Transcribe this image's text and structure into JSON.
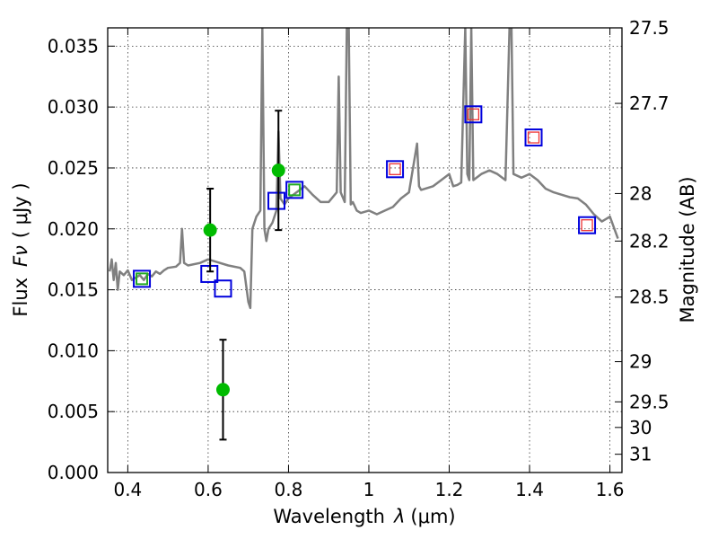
{
  "chart_data": {
    "type": "scatter",
    "xlabel_text": "Wavelength",
    "xlabel_symbol": "λ",
    "xlabel_unit": "(μm)",
    "ylabel_text": "Flux",
    "ylabel_symbol": "Fν",
    "ylabel_unit": "( μJy )",
    "y2label": "Magnitude (AB)",
    "xlim": [
      0.35,
      1.63
    ],
    "ylim": [
      0.0,
      0.0365
    ],
    "grid": true,
    "legend": "none",
    "x_ticks": [
      0.4,
      0.6,
      0.8,
      1.0,
      1.2,
      1.4,
      1.6
    ],
    "x_tick_labels": [
      "0.4",
      "0.6",
      "0.8",
      "1",
      "1.2",
      "1.4",
      "1.6"
    ],
    "y_ticks": [
      0.0,
      0.005,
      0.01,
      0.015,
      0.02,
      0.025,
      0.03,
      0.035
    ],
    "y_tick_labels": [
      "0.000",
      "0.005",
      "0.010",
      "0.015",
      "0.020",
      "0.025",
      "0.030",
      "0.035"
    ],
    "y2_ticks": [
      {
        "label": "27.5",
        "flux": 0.0365
      },
      {
        "label": "27.7",
        "flux": 0.0303
      },
      {
        "label": "28",
        "flux": 0.0229
      },
      {
        "label": "28.2",
        "flux": 0.019
      },
      {
        "label": "28.5",
        "flux": 0.0144
      },
      {
        "label": "29",
        "flux": 0.0091
      },
      {
        "label": "29.5",
        "flux": 0.0058
      },
      {
        "label": "30",
        "flux": 0.0037
      },
      {
        "label": "31",
        "flux": 0.0015
      }
    ],
    "colors": {
      "model": "#808080",
      "observed": "#00bb00",
      "errorbar": "#000000",
      "blue_square": "#0000dd",
      "green_square": "#22aa22",
      "red_square": "#ee3333"
    },
    "model_spectrum": {
      "x": [
        0.355,
        0.36,
        0.365,
        0.37,
        0.375,
        0.38,
        0.39,
        0.4,
        0.41,
        0.42,
        0.43,
        0.44,
        0.45,
        0.46,
        0.47,
        0.48,
        0.49,
        0.5,
        0.52,
        0.53,
        0.535,
        0.54,
        0.55,
        0.58,
        0.6,
        0.62,
        0.65,
        0.68,
        0.69,
        0.7,
        0.705,
        0.71,
        0.72,
        0.73,
        0.735,
        0.74,
        0.745,
        0.75,
        0.76,
        0.77,
        0.775,
        0.78,
        0.79,
        0.8,
        0.82,
        0.84,
        0.86,
        0.88,
        0.9,
        0.92,
        0.925,
        0.93,
        0.94,
        0.945,
        0.95,
        0.955,
        0.96,
        0.97,
        0.98,
        1.0,
        1.02,
        1.04,
        1.06,
        1.08,
        1.1,
        1.12,
        1.125,
        1.13,
        1.16,
        1.18,
        1.2,
        1.21,
        1.22,
        1.23,
        1.24,
        1.245,
        1.25,
        1.255,
        1.26,
        1.28,
        1.3,
        1.32,
        1.34,
        1.35,
        1.355,
        1.36,
        1.38,
        1.4,
        1.42,
        1.44,
        1.46,
        1.48,
        1.5,
        1.52,
        1.54,
        1.56,
        1.58,
        1.6,
        1.62
      ],
      "y": [
        0.0165,
        0.0175,
        0.0158,
        0.0172,
        0.015,
        0.0165,
        0.0162,
        0.0166,
        0.0158,
        0.016,
        0.0162,
        0.0158,
        0.0163,
        0.0161,
        0.0165,
        0.0163,
        0.0166,
        0.0168,
        0.0169,
        0.0172,
        0.02,
        0.0172,
        0.017,
        0.0172,
        0.0175,
        0.0173,
        0.017,
        0.0168,
        0.0165,
        0.014,
        0.0135,
        0.02,
        0.021,
        0.0215,
        0.0365,
        0.02,
        0.019,
        0.02,
        0.0205,
        0.0215,
        0.028,
        0.0225,
        0.022,
        0.0225,
        0.023,
        0.0235,
        0.0228,
        0.0222,
        0.0222,
        0.023,
        0.0325,
        0.023,
        0.0222,
        0.0365,
        0.0365,
        0.022,
        0.0222,
        0.0215,
        0.0213,
        0.0215,
        0.0212,
        0.0215,
        0.0218,
        0.0225,
        0.023,
        0.027,
        0.0235,
        0.0232,
        0.0235,
        0.024,
        0.0245,
        0.0235,
        0.0236,
        0.0238,
        0.0365,
        0.0245,
        0.024,
        0.0365,
        0.024,
        0.0245,
        0.0248,
        0.0245,
        0.024,
        0.0365,
        0.0365,
        0.0245,
        0.0242,
        0.0245,
        0.024,
        0.0233,
        0.023,
        0.0228,
        0.0226,
        0.0225,
        0.022,
        0.0212,
        0.0206,
        0.021,
        0.0192
      ]
    },
    "observed": [
      {
        "x": 0.605,
        "y": 0.0199,
        "yerr_low": 0.0034,
        "yerr_high": 0.0034
      },
      {
        "x": 0.637,
        "y": 0.0068,
        "yerr_low": 0.0041,
        "yerr_high": 0.0041
      },
      {
        "x": 0.775,
        "y": 0.0248,
        "yerr_low": 0.0049,
        "yerr_high": 0.0049
      }
    ],
    "blue_squares": [
      {
        "x": 0.435,
        "y": 0.0159
      },
      {
        "x": 0.603,
        "y": 0.0163
      },
      {
        "x": 0.637,
        "y": 0.0151
      },
      {
        "x": 0.77,
        "y": 0.0223
      },
      {
        "x": 0.815,
        "y": 0.0232
      },
      {
        "x": 1.065,
        "y": 0.0249
      },
      {
        "x": 1.26,
        "y": 0.0294
      },
      {
        "x": 1.41,
        "y": 0.0275
      },
      {
        "x": 1.543,
        "y": 0.0203
      }
    ],
    "green_squares": [
      {
        "x": 0.435,
        "y": 0.0159
      },
      {
        "x": 0.815,
        "y": 0.0232
      }
    ],
    "red_squares": [
      {
        "x": 1.065,
        "y": 0.0249
      },
      {
        "x": 1.26,
        "y": 0.0294
      },
      {
        "x": 1.41,
        "y": 0.0275
      },
      {
        "x": 1.543,
        "y": 0.0203
      }
    ]
  }
}
